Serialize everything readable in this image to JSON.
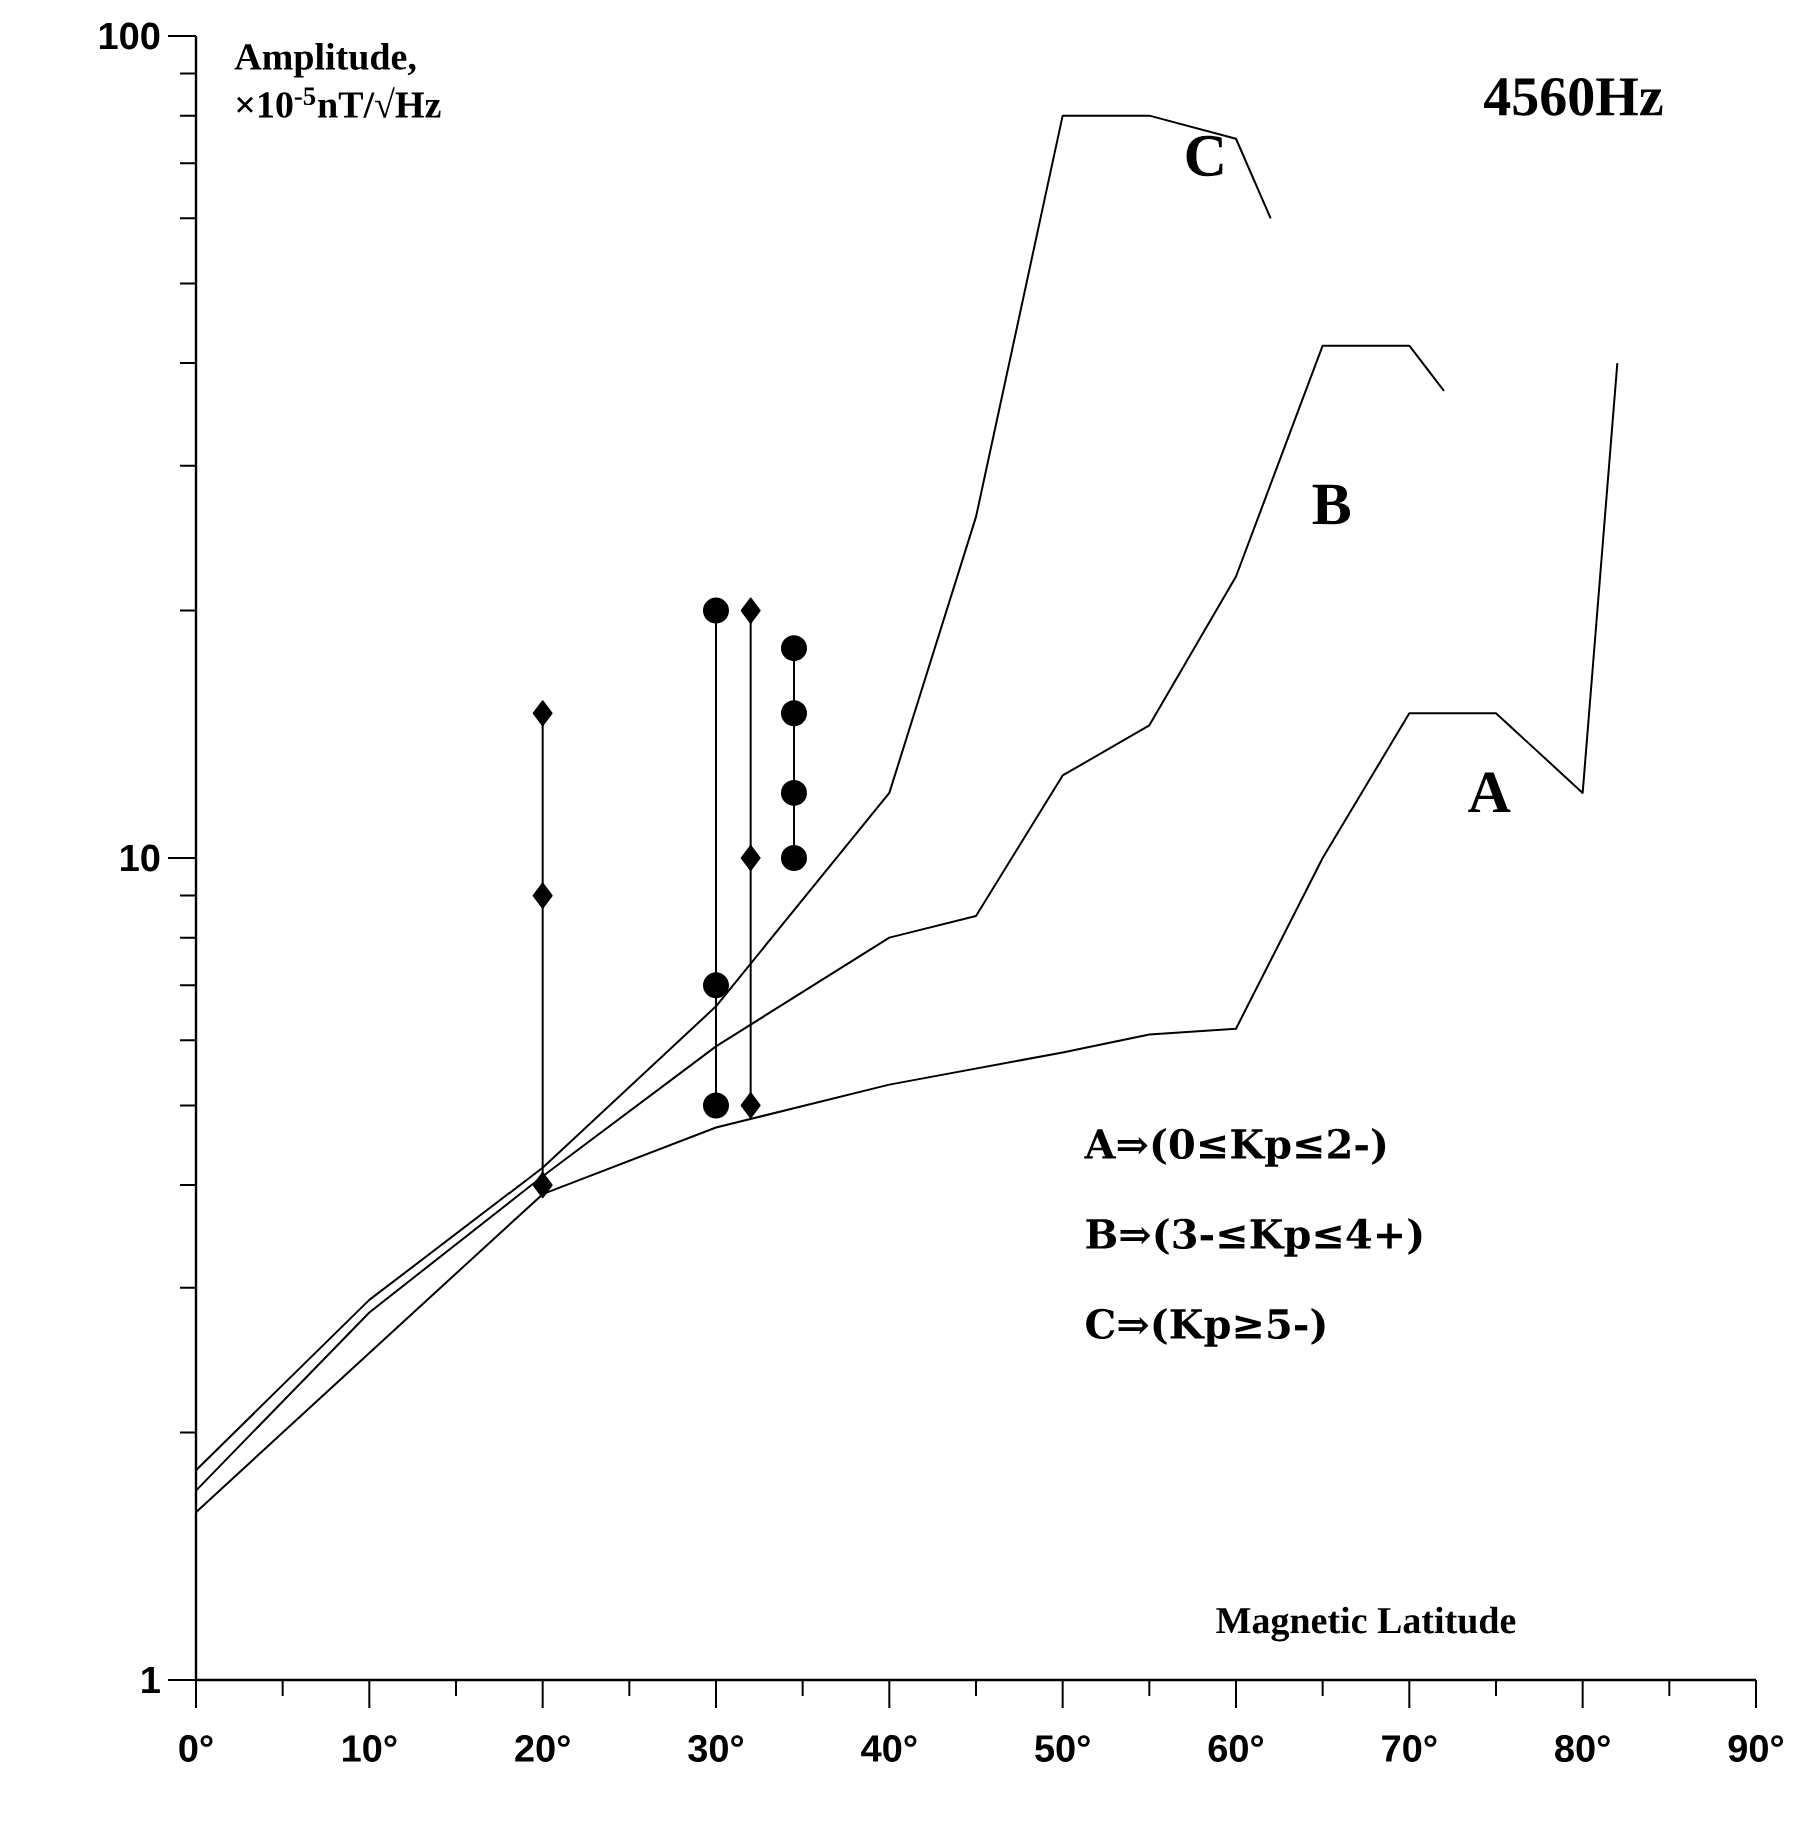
{
  "chart_data": {
    "type": "line",
    "title": "4560Hz",
    "xlabel": "Magnetic Latitude",
    "ylabel": "Amplitude, ×10$^{-5}$nT/√Hz",
    "log": "y",
    "grid": false,
    "line_style": "solid",
    "xlim": [
      0,
      90
    ],
    "ylim": [
      1,
      100
    ],
    "xticks": [
      {
        "value": 0,
        "label": "0°"
      },
      {
        "value": 10,
        "label": "10°"
      },
      {
        "value": 20,
        "label": "20°"
      },
      {
        "value": 30,
        "label": "30°"
      },
      {
        "value": 40,
        "label": "40°"
      },
      {
        "value": 50,
        "label": "50°"
      },
      {
        "value": 60,
        "label": "60°"
      },
      {
        "value": 70,
        "label": "70°"
      },
      {
        "value": 80,
        "label": "80°"
      },
      {
        "value": 90,
        "label": "90°"
      }
    ],
    "yticks": [
      1,
      10,
      100
    ],
    "series": [
      {
        "color": "#000000",
        "marker": "none",
        "x": [
          0,
          10,
          20,
          30,
          40,
          50,
          55,
          60,
          65,
          70,
          75,
          80,
          82
        ],
        "values": [
          1.6,
          2.5,
          3.9,
          4.7,
          5.3,
          5.8,
          6.1,
          6.2,
          10,
          15,
          15,
          12,
          40
        ]
      },
      {
        "color": "#000000",
        "marker": "none",
        "x": [
          0,
          10,
          20,
          30,
          40,
          45,
          50,
          55,
          60,
          65,
          70,
          72
        ],
        "values": [
          1.7,
          2.8,
          4.1,
          5.9,
          8,
          8.5,
          12.6,
          14.5,
          22,
          42,
          42,
          37
        ]
      },
      {
        "color": "#000000",
        "marker": "none",
        "x": [
          0,
          10,
          20,
          30,
          40,
          45,
          50,
          55,
          60,
          62
        ],
        "values": [
          1.8,
          2.9,
          4.2,
          6.6,
          12,
          26,
          80,
          80,
          75,
          60
        ]
      },
      {
        "color": "#000000",
        "marker": "diamond",
        "x": [
          20,
          20,
          20
        ],
        "values": [
          4,
          9,
          15
        ]
      },
      {
        "color": "#000000",
        "marker": "circle",
        "x": [
          30,
          30,
          30
        ],
        "values": [
          5,
          7,
          20
        ]
      },
      {
        "color": "#000000",
        "marker": "diamond",
        "x": [
          32,
          32,
          32
        ],
        "values": [
          5,
          10,
          20
        ]
      },
      {
        "color": "#000000",
        "marker": "circle",
        "x": [
          34.5,
          34.5,
          34.5,
          34.5
        ],
        "values": [
          10,
          12,
          15,
          18
        ]
      }
    ],
    "annotations": [
      "A",
      "B",
      "C",
      "A⇒(0≤Kp≤2-)",
      "B⇒(3-≤Kp≤4+)",
      "C⇒(Kp≥5-)"
    ]
  }
}
